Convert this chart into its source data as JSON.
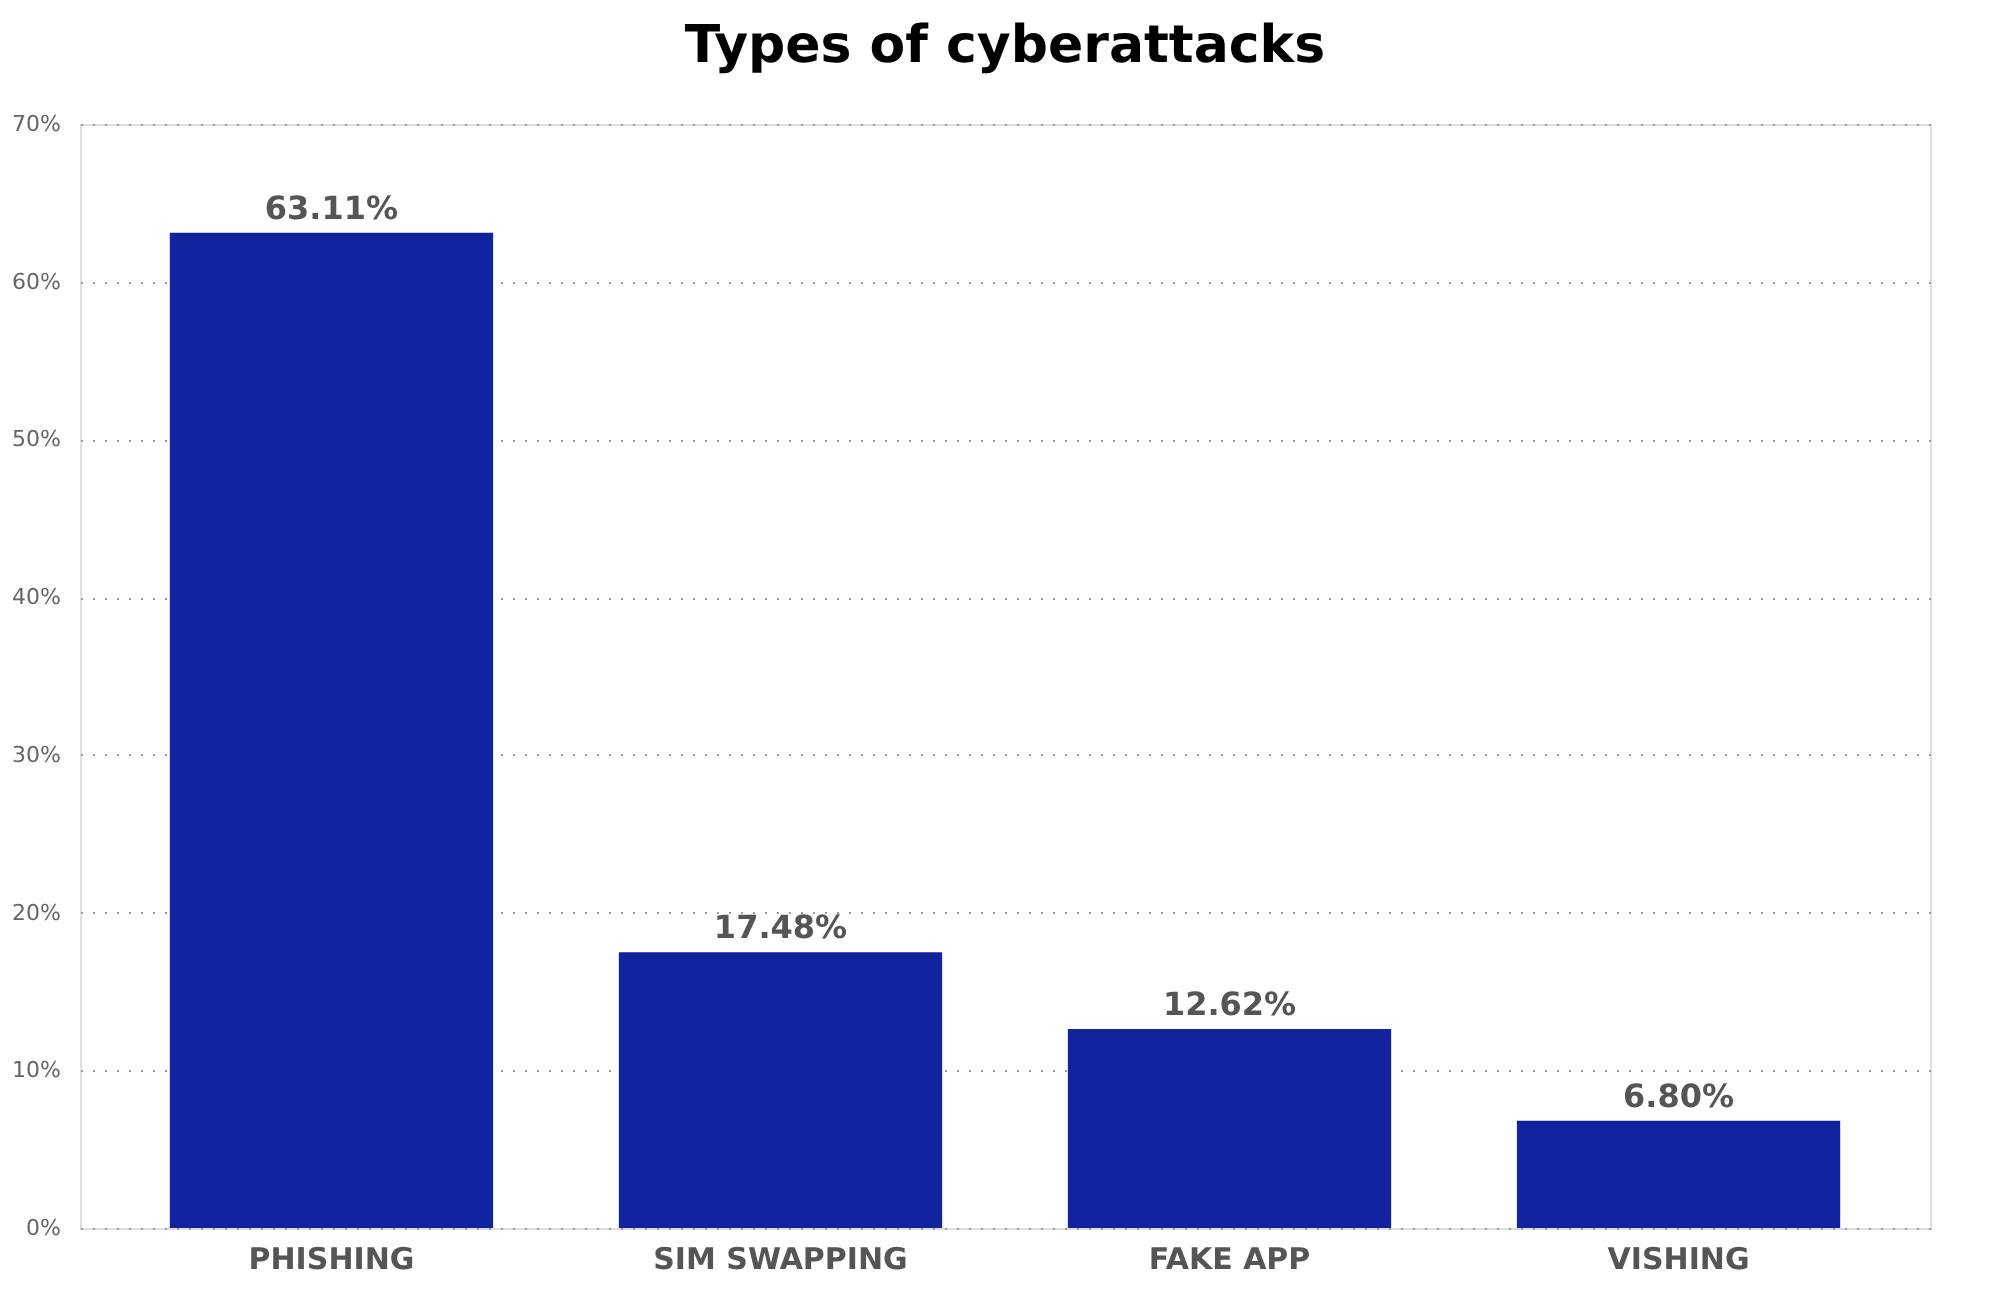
{
  "chart_data": {
    "type": "bar",
    "title": "Types of cyberattacks",
    "categories": [
      "PHISHING",
      "SIM SWAPPING",
      "FAKE APP",
      "VISHING"
    ],
    "values": [
      63.11,
      17.48,
      12.62,
      6.8
    ],
    "value_labels": [
      "63.11%",
      "17.48%",
      "12.62%",
      "6.80%"
    ],
    "color": "#12239e",
    "ylim": [
      0,
      70
    ],
    "yticks": [
      {
        "value": 0,
        "label": "0%"
      },
      {
        "value": 10,
        "label": "10%"
      },
      {
        "value": 20,
        "label": "20%"
      },
      {
        "value": 30,
        "label": "30%"
      },
      {
        "value": 40,
        "label": "40%"
      },
      {
        "value": 50,
        "label": "50%"
      },
      {
        "value": 60,
        "label": "60%"
      },
      {
        "value": 70,
        "label": "70%"
      }
    ],
    "grid": "y"
  }
}
